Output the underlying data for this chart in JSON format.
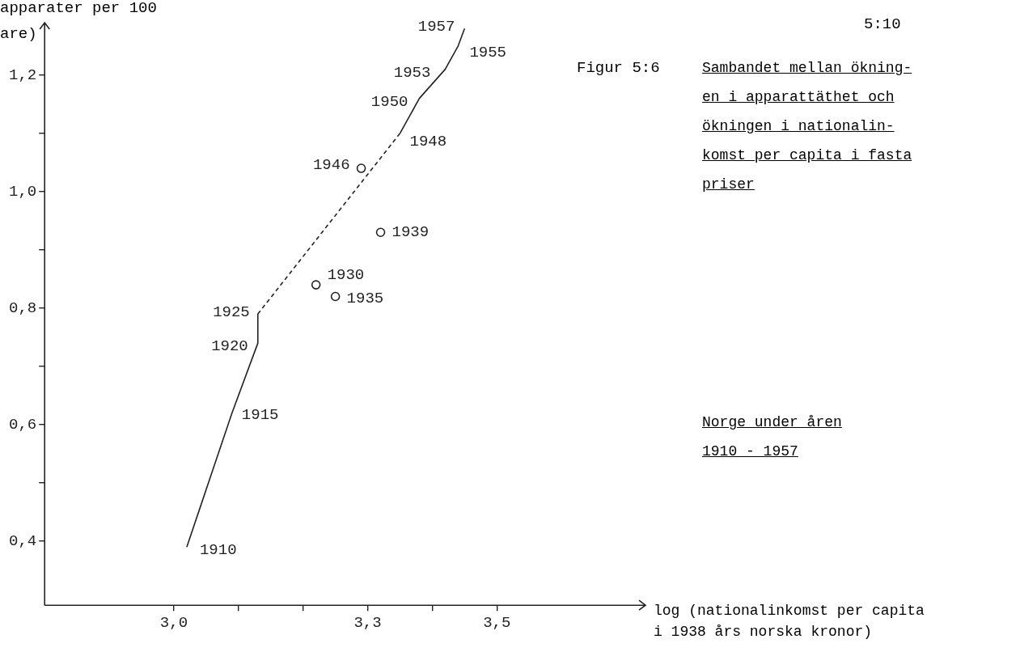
{
  "chart_data": {
    "type": "line",
    "title": "Sambandet mellan ökning-\nen i apparattäthet och\nökningen i nationalin-\nkomst per capita i fasta\npriser",
    "subtitle": "Norge under åren\n1910 - 1957",
    "xlabel": "log (nationalinkomst per capita\ni 1938 års norska kronor)",
    "ylabel": "apparater per 100\nare)",
    "xlim": [
      2.8,
      3.73
    ],
    "ylim": [
      0.29,
      1.29
    ],
    "xticks": [
      {
        "value": 3.0,
        "label": "3,0"
      },
      {
        "value": 3.1,
        "label": null
      },
      {
        "value": 3.2,
        "label": null
      },
      {
        "value": 3.3,
        "label": "3,3"
      },
      {
        "value": 3.4,
        "label": null
      },
      {
        "value": 3.5,
        "label": "3,5"
      }
    ],
    "yticks": [
      {
        "value": 0.4,
        "label": "0,4"
      },
      {
        "value": 0.5,
        "label": null
      },
      {
        "value": 0.6,
        "label": "0,6"
      },
      {
        "value": 0.7,
        "label": null
      },
      {
        "value": 0.8,
        "label": "0,8"
      },
      {
        "value": 0.9,
        "label": null
      },
      {
        "value": 1.0,
        "label": "1,0"
      },
      {
        "value": 1.1,
        "label": null
      },
      {
        "value": 1.2,
        "label": "1,2"
      }
    ],
    "grid": false,
    "legend": false,
    "series": [
      {
        "type": "line",
        "color": "#222222",
        "line_style": "solid",
        "marker": "none",
        "x": [
          3.02,
          3.09,
          3.13,
          3.13
        ],
        "values": [
          0.39,
          0.62,
          0.74,
          0.79
        ]
      },
      {
        "type": "line",
        "color": "#222222",
        "line_style": "dashed",
        "marker": "none",
        "x": [
          3.13,
          3.35
        ],
        "values": [
          0.79,
          1.1
        ]
      },
      {
        "type": "line",
        "color": "#222222",
        "line_style": "solid",
        "marker": "none",
        "x": [
          3.35,
          3.38,
          3.42,
          3.44,
          3.45
        ],
        "values": [
          1.1,
          1.16,
          1.21,
          1.25,
          1.28
        ]
      },
      {
        "type": "scatter",
        "color": "#222222",
        "marker": "circle",
        "x": [
          3.29,
          3.32,
          3.22,
          3.25
        ],
        "values": [
          1.04,
          0.93,
          0.84,
          0.82
        ]
      }
    ],
    "annotations": [
      "Figur 5:6",
      "5:10",
      {
        "text": "1957",
        "x": 3.45,
        "y": 1.28
      },
      {
        "text": "1955",
        "x": 3.44,
        "y": 1.25
      },
      {
        "text": "1953",
        "x": 3.42,
        "y": 1.21
      },
      {
        "text": "1950",
        "x": 3.38,
        "y": 1.16
      },
      {
        "text": "1948",
        "x": 3.35,
        "y": 1.1
      },
      {
        "text": "1946",
        "x": 3.29,
        "y": 1.04
      },
      {
        "text": "1939",
        "x": 3.32,
        "y": 0.93
      },
      {
        "text": "1930",
        "x": 3.22,
        "y": 0.84
      },
      {
        "text": "1935",
        "x": 3.25,
        "y": 0.82
      },
      {
        "text": "1925",
        "x": 3.13,
        "y": 0.79
      },
      {
        "text": "1920",
        "x": 3.13,
        "y": 0.74
      },
      {
        "text": "1915",
        "x": 3.09,
        "y": 0.62
      },
      {
        "text": "1910",
        "x": 3.02,
        "y": 0.39
      }
    ]
  }
}
